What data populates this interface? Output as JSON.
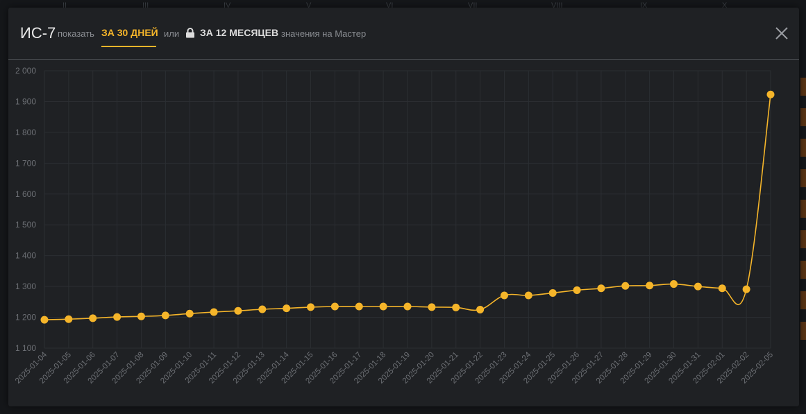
{
  "background": {
    "roman_numerals": [
      "II",
      "III",
      "IV",
      "V",
      "VI",
      "VII",
      "VIII",
      "IX",
      "X"
    ]
  },
  "header": {
    "title": "ИС-7",
    "show_label": "показать",
    "tab_30_days": "ЗА 30 ДНЕЙ",
    "or_label": "или",
    "tab_12_months": "ЗА 12 МЕСЯЦЕВ",
    "values_label": "значения на Мастер",
    "accent_color": "#f5b52a",
    "icons": [
      "lock-icon",
      "close-icon"
    ]
  },
  "chart_data": {
    "type": "line",
    "x": [
      "2025-01-04",
      "2025-01-05",
      "2025-01-06",
      "2025-01-07",
      "2025-01-08",
      "2025-01-09",
      "2025-01-10",
      "2025-01-11",
      "2025-01-12",
      "2025-01-13",
      "2025-01-14",
      "2025-01-15",
      "2025-01-16",
      "2025-01-17",
      "2025-01-18",
      "2025-01-19",
      "2025-01-20",
      "2025-01-21",
      "2025-01-22",
      "2025-01-23",
      "2025-01-24",
      "2025-01-25",
      "2025-01-26",
      "2025-01-27",
      "2025-01-28",
      "2025-01-29",
      "2025-01-30",
      "2025-01-31",
      "2025-02-01",
      "2025-02-02",
      "2025-02-05"
    ],
    "series": [
      {
        "values": [
          1192,
          1194,
          1197,
          1201,
          1203,
          1206,
          1212,
          1217,
          1221,
          1226,
          1229,
          1233,
          1235,
          1235,
          1235,
          1235,
          1233,
          1232,
          1225,
          1271,
          1271,
          1279,
          1288,
          1294,
          1302,
          1303,
          1308,
          1300,
          1294,
          1291,
          1923
        ],
        "color": "#f5b52a"
      }
    ],
    "yticks": [
      "2 000",
      "1 900",
      "1 800",
      "1 700",
      "1 600",
      "1 500",
      "1 400",
      "1 300",
      "1 200",
      "1 100"
    ],
    "ylim": [
      1100,
      2000
    ],
    "grid": true,
    "legend": "none"
  }
}
